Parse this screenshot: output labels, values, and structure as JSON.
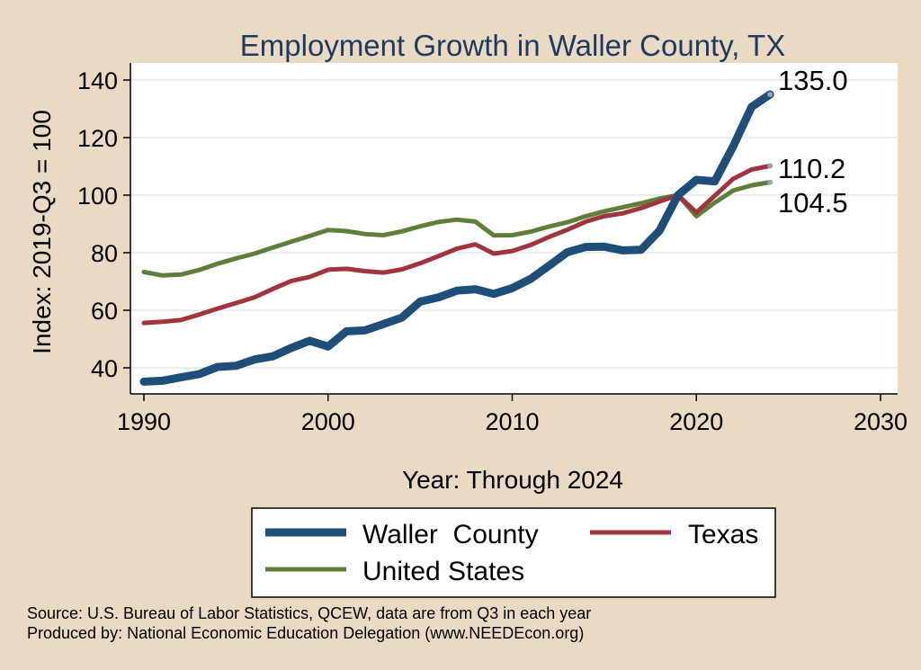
{
  "chart_data": {
    "type": "line",
    "title": "Employment Growth in Waller County, TX",
    "xlabel": "Year: Through 2024",
    "ylabel": "Index: 2019-Q3 = 100",
    "xlim": [
      1990,
      2030
    ],
    "ylim": [
      32,
      145
    ],
    "x_ticks": [
      1990,
      2000,
      2010,
      2020,
      2030
    ],
    "y_ticks": [
      40,
      60,
      80,
      100,
      120,
      140
    ],
    "grid": true,
    "legend_position": "bottom",
    "x": [
      1990,
      1991,
      1992,
      1993,
      1994,
      1995,
      1996,
      1997,
      1998,
      1999,
      2000,
      2001,
      2002,
      2003,
      2004,
      2005,
      2006,
      2007,
      2008,
      2009,
      2010,
      2011,
      2012,
      2013,
      2014,
      2015,
      2016,
      2017,
      2018,
      2019,
      2020,
      2021,
      2022,
      2023,
      2024
    ],
    "series": [
      {
        "name": "Waller  County",
        "color": "#1f4e79",
        "line_width": 9,
        "end_label": "135.0",
        "values": [
          35.2,
          35.5,
          36.7,
          37.8,
          40.3,
          40.7,
          42.9,
          44.0,
          46.9,
          49.4,
          47.4,
          52.7,
          53.0,
          55.2,
          57.4,
          63.0,
          64.5,
          66.8,
          67.3,
          65.7,
          67.7,
          70.9,
          75.5,
          80.2,
          82.0,
          82.1,
          80.8,
          81.0,
          87.7,
          100.0,
          105.3,
          104.8,
          117.0,
          130.7,
          135.0
        ]
      },
      {
        "name": "Texas",
        "color": "#a0343f",
        "line_width": 5,
        "end_label": "110.2",
        "values": [
          55.6,
          56.0,
          56.6,
          58.5,
          60.6,
          62.5,
          64.5,
          67.4,
          70.2,
          71.6,
          74.1,
          74.4,
          73.6,
          73.1,
          74.2,
          76.3,
          78.8,
          81.4,
          82.9,
          79.7,
          80.6,
          82.7,
          85.5,
          88.0,
          90.8,
          92.7,
          93.7,
          95.5,
          97.8,
          100.0,
          94.0,
          99.8,
          105.7,
          108.9,
          110.2
        ]
      },
      {
        "name": "United States",
        "color": "#5e7f3a",
        "line_width": 5,
        "end_label": "104.5",
        "values": [
          73.3,
          72.1,
          72.4,
          74.0,
          76.2,
          78.0,
          79.7,
          81.8,
          83.8,
          85.8,
          87.9,
          87.5,
          86.5,
          86.1,
          87.4,
          89.2,
          90.7,
          91.5,
          90.8,
          86.0,
          86.1,
          87.3,
          89.1,
          90.6,
          92.7,
          94.4,
          95.8,
          97.2,
          98.8,
          100.0,
          92.7,
          97.4,
          101.6,
          103.4,
          104.5
        ]
      }
    ]
  },
  "notes": {
    "source": "Source: U.S. Bureau of Labor Statistics, QCEW, data are from Q3 in each year",
    "produced_by": "Produced by: National Economic Education Delegation (www.NEEDEcon.org)"
  }
}
